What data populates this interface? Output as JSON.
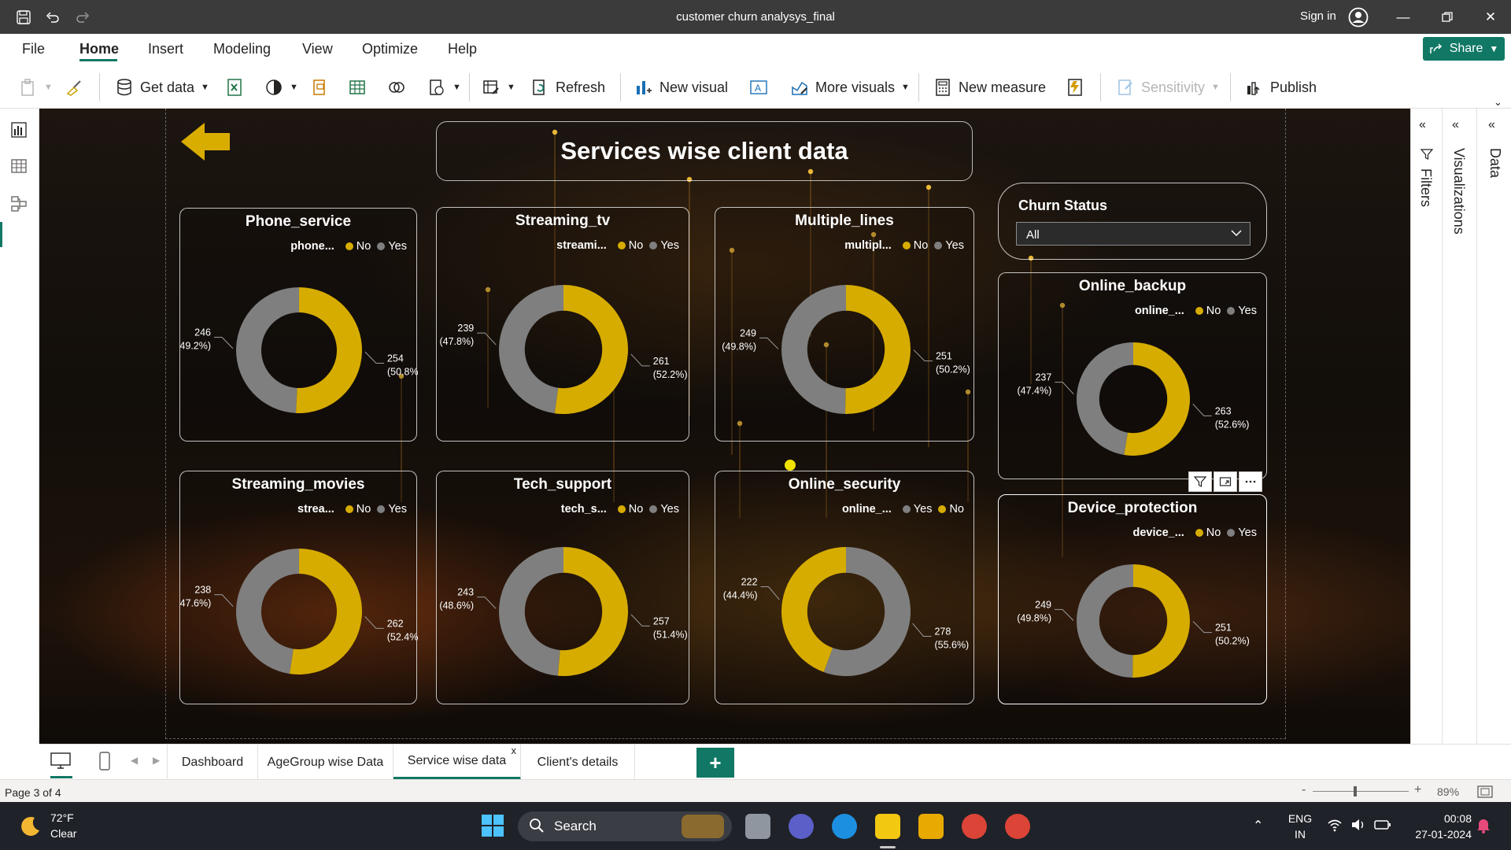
{
  "titlebar": {
    "title": "customer churn analysys_final",
    "sign_in": "Sign in"
  },
  "menu": {
    "items": [
      "File",
      "Home",
      "Insert",
      "Modeling",
      "View",
      "Optimize",
      "Help"
    ],
    "active": "Home",
    "share": "Share"
  },
  "ribbon": {
    "get_data": "Get data",
    "refresh": "Refresh",
    "new_visual": "New visual",
    "more_visuals": "More visuals",
    "new_measure": "New measure",
    "sensitivity": "Sensitivity",
    "publish": "Publish"
  },
  "report": {
    "title": "Services wise client data",
    "slicer": {
      "title": "Churn Status",
      "value": "All"
    }
  },
  "colors": {
    "no": "#d6ac00",
    "yes": "#7f7f7f",
    "accent": "#117865"
  },
  "chart_data": [
    {
      "type": "donut",
      "title": "Phone_service",
      "legend_title": "phone...",
      "legend": [
        "No",
        "Yes"
      ],
      "slices": [
        {
          "name": "No",
          "value": 254,
          "pct": "50.8%"
        },
        {
          "name": "Yes",
          "value": 246,
          "pct": "49.2%"
        }
      ]
    },
    {
      "type": "donut",
      "title": "Streaming_tv",
      "legend_title": "streami...",
      "legend": [
        "No",
        "Yes"
      ],
      "slices": [
        {
          "name": "No",
          "value": 261,
          "pct": "52.2%"
        },
        {
          "name": "Yes",
          "value": 239,
          "pct": "47.8%"
        }
      ]
    },
    {
      "type": "donut",
      "title": "Multiple_lines",
      "legend_title": "multipl...",
      "legend": [
        "No",
        "Yes"
      ],
      "slices": [
        {
          "name": "No",
          "value": 251,
          "pct": "50.2%"
        },
        {
          "name": "Yes",
          "value": 249,
          "pct": "49.8%"
        }
      ]
    },
    {
      "type": "donut",
      "title": "Online_backup",
      "legend_title": "online_...",
      "legend": [
        "No",
        "Yes"
      ],
      "slices": [
        {
          "name": "No",
          "value": 263,
          "pct": "52.6%"
        },
        {
          "name": "Yes",
          "value": 237,
          "pct": "47.4%"
        }
      ]
    },
    {
      "type": "donut",
      "title": "Streaming_movies",
      "legend_title": "strea...",
      "legend": [
        "No",
        "Yes"
      ],
      "slices": [
        {
          "name": "No",
          "value": 262,
          "pct": "52.4%"
        },
        {
          "name": "Yes",
          "value": 238,
          "pct": "47.6%"
        }
      ]
    },
    {
      "type": "donut",
      "title": "Tech_support",
      "legend_title": "tech_s...",
      "legend": [
        "No",
        "Yes"
      ],
      "slices": [
        {
          "name": "No",
          "value": 257,
          "pct": "51.4%"
        },
        {
          "name": "Yes",
          "value": 243,
          "pct": "48.6%"
        }
      ]
    },
    {
      "type": "donut",
      "title": "Online_security",
      "legend_title": "online_...",
      "legend": [
        "Yes",
        "No"
      ],
      "slices": [
        {
          "name": "Yes",
          "value": 278,
          "pct": "55.6%"
        },
        {
          "name": "No",
          "value": 222,
          "pct": "44.4%"
        }
      ]
    },
    {
      "type": "donut",
      "title": "Device_protection",
      "legend_title": "device_...",
      "legend": [
        "No",
        "Yes"
      ],
      "slices": [
        {
          "name": "No",
          "value": 251,
          "pct": "50.2%"
        },
        {
          "name": "Yes",
          "value": 249,
          "pct": "49.8%"
        }
      ]
    }
  ],
  "panes": {
    "filters": "Filters",
    "visualizations": "Visualizations",
    "data": "Data"
  },
  "tabs": [
    "Dashboard",
    "AgeGroup wise Data",
    "Service wise data",
    "Client's details"
  ],
  "active_tab": "Service wise data",
  "statusbar": {
    "page": "Page 3 of 4",
    "zoom": "89%"
  },
  "taskbar": {
    "temp": "72°F",
    "weather": "Clear",
    "search": "Search",
    "lang1": "ENG",
    "lang2": "IN",
    "time": "00:08",
    "date": "27-01-2024"
  }
}
